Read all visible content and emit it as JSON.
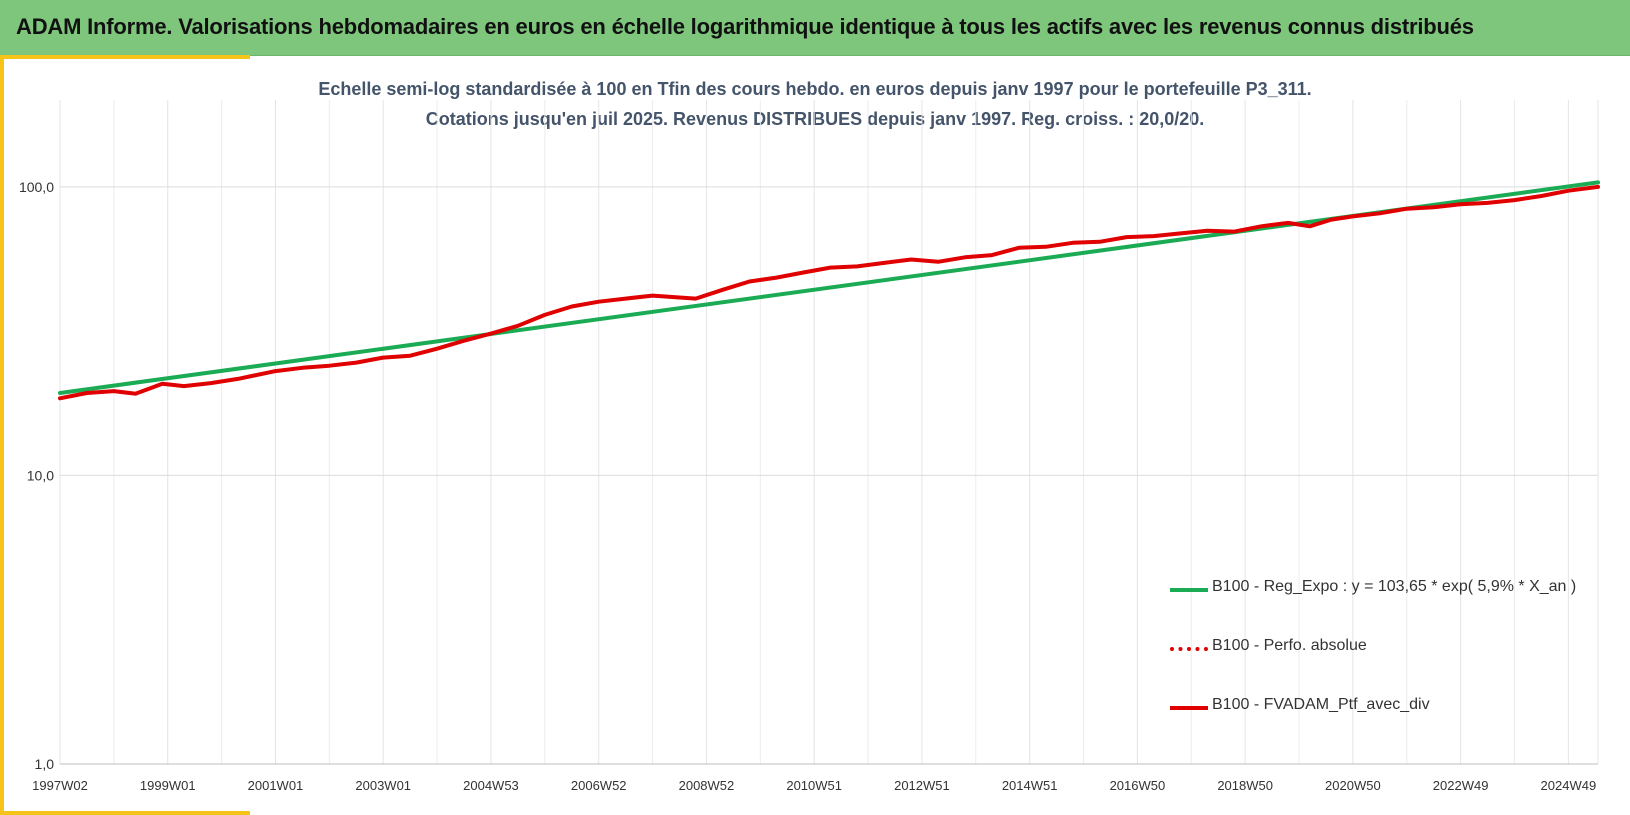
{
  "header": {
    "title": "ADAM Informe. Valorisations hebdomadaires en euros en échelle logarithmique identique à tous les actifs avec les revenus connus distribués"
  },
  "colors": {
    "header_bg": "#7fc67d",
    "accent": "#f6c318",
    "regression": "#1aab54",
    "portfolio": "#e00000",
    "subtitle_text": "#44546a"
  },
  "chart_data": {
    "type": "line",
    "title": "Echelle semi-log standardisée à 100 en Tfin des cours hebdo. en euros depuis janv 1997 pour le portefeuille P3_311.",
    "subtitle": "Cotations jusqu'en juil 2025. Revenus DISTRIBUES depuis janv 1997. Reg. croiss. : 20,0/20.",
    "y_scale": "log",
    "ylim": [
      1,
      200
    ],
    "y_ticks": [
      {
        "value": 1,
        "label": "1,0"
      },
      {
        "value": 10,
        "label": "10,0"
      },
      {
        "value": 100,
        "label": "100,0"
      }
    ],
    "x_ticks": [
      "1997W02",
      "1999W01",
      "2001W01",
      "2003W01",
      "2004W53",
      "2006W52",
      "2008W52",
      "2010W51",
      "2012W51",
      "2014W51",
      "2016W50",
      "2018W50",
      "2020W50",
      "2022W49",
      "2024W49"
    ],
    "x_tick_years": [
      1997,
      1999,
      2001,
      2003,
      2005,
      2007,
      2009,
      2011,
      2013,
      2015,
      2017,
      2019,
      2021,
      2023,
      2025
    ],
    "x_range_years": [
      1997.0,
      2025.55
    ],
    "grid": true,
    "legend_position": "bottom-right",
    "series": [
      {
        "name": "B100 - Reg_Expo : y = 103,65 * exp( 5,9% * X_an )",
        "style": "solid",
        "color": "#1aab54",
        "x": [
          1997.0,
          2025.55
        ],
        "y": [
          19.3,
          103.65
        ]
      },
      {
        "name": "B100 - Perfo. absolue",
        "style": "dotted",
        "color": "#e00000",
        "x": [],
        "y": []
      },
      {
        "name": "B100 - FVADAM_Ptf_avec_div",
        "style": "solid",
        "color": "#e00000",
        "x": [
          1997.0,
          1997.5,
          1998.0,
          1998.4,
          1998.9,
          1999.3,
          1999.8,
          2000.3,
          2001.0,
          2001.5,
          2002.0,
          2002.5,
          2003.0,
          2003.5,
          2004.0,
          2004.5,
          2005.0,
          2005.5,
          2006.0,
          2006.5,
          2007.0,
          2007.5,
          2008.0,
          2008.4,
          2008.8,
          2009.3,
          2009.8,
          2010.3,
          2010.8,
          2011.3,
          2011.8,
          2012.3,
          2012.8,
          2013.3,
          2013.8,
          2014.3,
          2014.8,
          2015.3,
          2015.8,
          2016.3,
          2016.8,
          2017.3,
          2017.8,
          2018.3,
          2018.8,
          2019.3,
          2019.8,
          2020.2,
          2020.6,
          2021.0,
          2021.5,
          2022.0,
          2022.5,
          2023.0,
          2023.5,
          2024.0,
          2024.5,
          2025.0,
          2025.55
        ],
        "y": [
          18.5,
          19.3,
          19.6,
          19.2,
          20.8,
          20.4,
          20.9,
          21.6,
          23.0,
          23.6,
          24.0,
          24.6,
          25.6,
          26.0,
          27.5,
          29.3,
          31.0,
          33.0,
          36.0,
          38.5,
          40.0,
          41.0,
          42.0,
          41.5,
          41.0,
          44.0,
          47.0,
          48.5,
          50.5,
          52.5,
          53.0,
          54.5,
          56.0,
          55.0,
          57.0,
          58.0,
          61.5,
          62.0,
          64.0,
          64.5,
          67.0,
          67.5,
          69.0,
          70.5,
          70.0,
          73.0,
          75.0,
          73.0,
          77.0,
          79.0,
          81.0,
          84.0,
          85.0,
          87.0,
          88.0,
          90.0,
          93.0,
          97.0,
          100.0
        ]
      }
    ]
  }
}
